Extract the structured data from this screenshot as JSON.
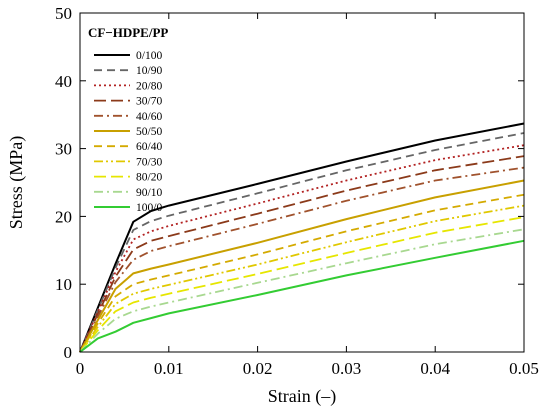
{
  "chart_data": {
    "type": "line",
    "xlabel": "Strain (–)",
    "ylabel": "Stress (MPa)",
    "xlim": [
      0,
      0.05
    ],
    "ylim": [
      0,
      50
    ],
    "x_ticks": [
      0,
      0.01,
      0.02,
      0.03,
      0.04,
      0.05
    ],
    "x_tick_labels": [
      "0",
      "0.01",
      "0.02",
      "0.03",
      "0.04",
      "0.05"
    ],
    "y_ticks": [
      0,
      10,
      20,
      30,
      40,
      50
    ],
    "y_tick_labels": [
      "0",
      "10",
      "20",
      "30",
      "40",
      "50"
    ],
    "legend_title": "CF−HDPE/PP",
    "legend_position": "top-left",
    "grid": false,
    "x": [
      0,
      0.002,
      0.004,
      0.006,
      0.008,
      0.01,
      0.02,
      0.03,
      0.04,
      0.05
    ],
    "series": [
      {
        "name": "0/100",
        "color": "#000000",
        "dash": "solid",
        "values": [
          0,
          6.5,
          13,
          19.2,
          20.8,
          21.6,
          24.8,
          28.1,
          31.2,
          33.7
        ]
      },
      {
        "name": "10/90",
        "color": "#666666",
        "dash": "dash",
        "values": [
          0,
          6.2,
          12.4,
          18.0,
          19.3,
          20.1,
          23.4,
          26.8,
          29.8,
          32.3
        ]
      },
      {
        "name": "20/80",
        "color": "#b22222",
        "dash": "dot",
        "values": [
          0,
          5.9,
          11.8,
          16.6,
          17.8,
          18.6,
          21.9,
          25.3,
          28.3,
          30.5
        ]
      },
      {
        "name": "30/70",
        "color": "#8b3a1a",
        "dash": "longdash",
        "values": [
          0,
          5.6,
          11.1,
          15.1,
          16.4,
          17.1,
          20.4,
          23.8,
          26.8,
          28.9
        ]
      },
      {
        "name": "40/60",
        "color": "#a0522d",
        "dash": "dashdot",
        "values": [
          0,
          5.2,
          10.3,
          13.6,
          14.9,
          15.6,
          18.9,
          22.3,
          25.3,
          27.2
        ]
      },
      {
        "name": "50/50",
        "color": "#c8a000",
        "dash": "solid",
        "values": [
          0,
          4.7,
          9.3,
          11.6,
          12.3,
          12.9,
          16.1,
          19.6,
          22.8,
          25.3
        ]
      },
      {
        "name": "60/40",
        "color": "#d4aa00",
        "dash": "dash",
        "values": [
          0,
          4.2,
          8.2,
          10.0,
          10.7,
          11.3,
          14.4,
          17.8,
          20.9,
          23.2
        ]
      },
      {
        "name": "70/30",
        "color": "#e0c800",
        "dash": "dashdotdot",
        "values": [
          0,
          3.7,
          7.1,
          8.6,
          9.3,
          9.9,
          12.9,
          16.2,
          19.3,
          21.6
        ]
      },
      {
        "name": "80/20",
        "color": "#e6e600",
        "dash": "longdash",
        "values": [
          0,
          3.2,
          6.0,
          7.3,
          8.0,
          8.6,
          11.5,
          14.6,
          17.6,
          19.9
        ]
      },
      {
        "name": "90/10",
        "color": "#a8d890",
        "dash": "dashdot",
        "values": [
          0,
          2.7,
          4.9,
          6.0,
          6.7,
          7.3,
          10.2,
          13.1,
          15.9,
          18.1
        ]
      },
      {
        "name": "100/0",
        "color": "#33cc33",
        "dash": "solid",
        "values": [
          0,
          2.0,
          3.0,
          4.3,
          5.0,
          5.7,
          8.4,
          11.3,
          13.9,
          16.4
        ]
      }
    ]
  }
}
